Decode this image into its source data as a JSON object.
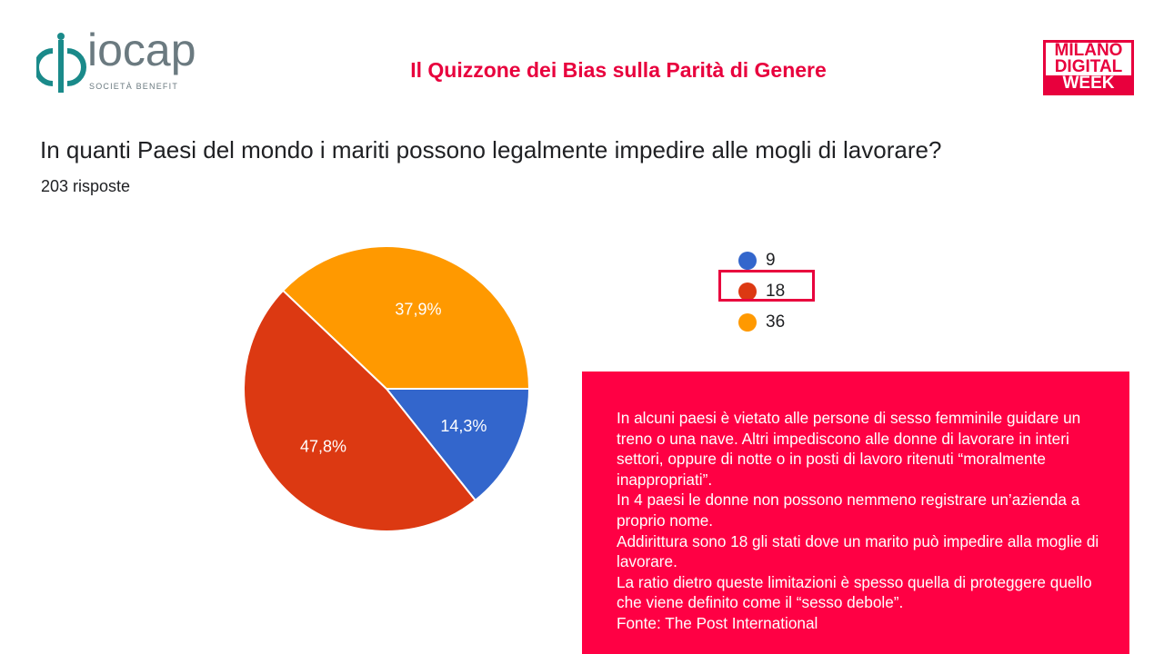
{
  "header": {
    "logo_left": {
      "name": "iocap",
      "tagline": "SOCIETÀ BENEFIT"
    },
    "title": "Il Quizzone dei Bias sulla Parità di Genere",
    "logo_right": {
      "line1": "MILANO",
      "line2": "DIGITAL",
      "line3": "WEEK"
    }
  },
  "question": "In quanti Paesi del mondo i mariti possono legalmente impedire alle mogli di lavorare?",
  "responses": "203 risposte",
  "chart_data": {
    "type": "pie",
    "categories": [
      "9",
      "18",
      "36"
    ],
    "values": [
      14.3,
      47.8,
      37.9
    ],
    "labels": [
      "14,3%",
      "47,8%",
      "37,9%"
    ],
    "colors": [
      "#3366cc",
      "#dc3912",
      "#ff9900"
    ],
    "legend_position": "right",
    "highlighted": "18"
  },
  "info": {
    "paragraphs": [
      "In alcuni paesi è vietato alle persone di sesso femminile guidare un treno o una nave. Altri impediscono alle donne di lavorare in interi settori, oppure di notte o in posti di lavoro ritenuti “moralmente inappropriati”.",
      "In 4 paesi le donne non possono nemmeno registrare un’azienda a proprio nome.",
      "Addirittura sono 18 gli stati dove un marito può impedire alla moglie di lavorare.",
      "La ratio dietro queste limitazioni è spesso quella di proteggere quello che viene definito come il “sesso debole”.",
      "Fonte: The Post International"
    ]
  },
  "colors": {
    "accent": "#e8003d",
    "info_bg": "#ff0044",
    "logo_teal": "#1a8a8a",
    "logo_grey": "#6b7a80"
  }
}
